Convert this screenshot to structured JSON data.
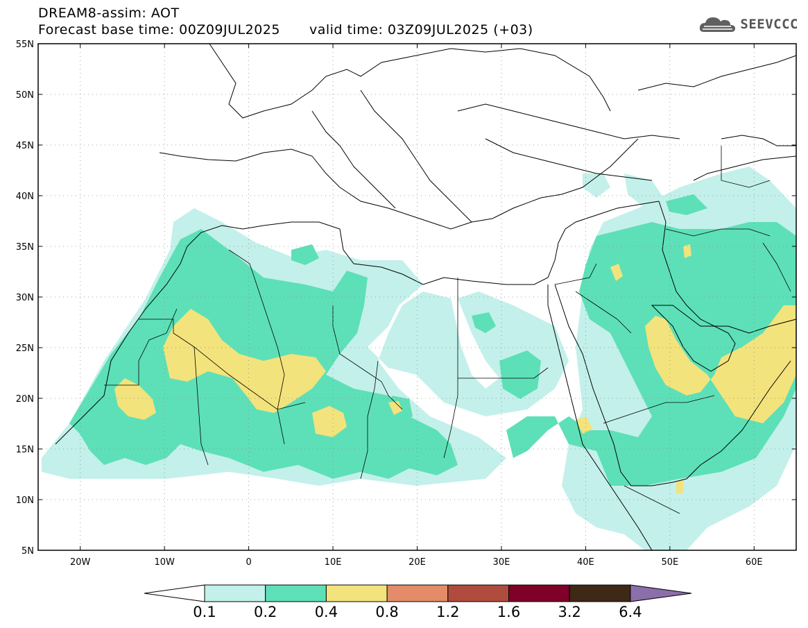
{
  "title": {
    "line1": "DREAM8-assim: AOT",
    "base_time": "Forecast base time: 00Z09JUL2025",
    "valid_time": "valid time: 03Z09JUL2025 (+03)"
  },
  "logo": {
    "text": "SEEVCCC",
    "icon": "cloud-icon"
  },
  "map": {
    "lat_range": [
      5,
      55
    ],
    "lon_range": [
      -25,
      65
    ],
    "lat_ticks": [
      "55N",
      "50N",
      "45N",
      "40N",
      "35N",
      "30N",
      "25N",
      "20N",
      "15N",
      "10N",
      "5N"
    ],
    "lon_ticks": [
      "20W",
      "10W",
      "0",
      "10E",
      "20E",
      "30E",
      "40E",
      "50E",
      "60E"
    ],
    "gridlines": "dotted"
  },
  "colorbar": {
    "labels": [
      "0.1",
      "0.2",
      "0.4",
      "0.8",
      "1.2",
      "1.6",
      "3.2",
      "6.4"
    ],
    "colors": [
      "#ffffff",
      "#c3f0ea",
      "#5de0b7",
      "#f3e37c",
      "#e48b69",
      "#b04c3e",
      "#7f0028",
      "#3f2816",
      "#8b6eaa"
    ]
  }
}
